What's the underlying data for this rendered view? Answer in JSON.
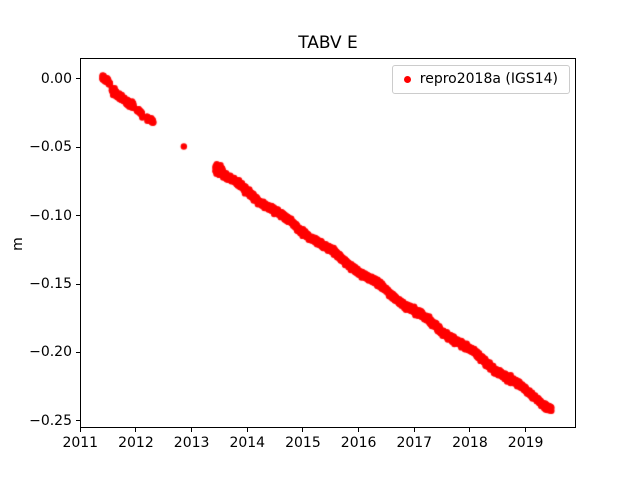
{
  "chart_data": {
    "type": "scatter",
    "title": "TABV E",
    "xlabel": "",
    "ylabel": "m",
    "xlim": [
      2010.995,
      2019.905
    ],
    "ylim_top": 0.0153,
    "ylim_bottom": -0.2553,
    "xticks": [
      2011,
      2012,
      2013,
      2014,
      2015,
      2016,
      2017,
      2018,
      2019
    ],
    "yticks": [
      0.0,
      -0.05,
      -0.1,
      -0.15,
      -0.2,
      -0.25
    ],
    "ytick_labels": [
      "0.00",
      "−0.05",
      "−0.10",
      "−0.15",
      "−0.20",
      "−0.25"
    ],
    "grid": false,
    "legend_position": "upper right",
    "series": [
      {
        "name": "repro2018a (IGS14)",
        "color": "#ff0000",
        "marker": "point",
        "marker_radius_px": 3.2,
        "trend_segments": [
          {
            "x0": 2011.38,
            "x1": 2011.52,
            "y0": 0.002,
            "y1": -0.003,
            "noise": 0.0018,
            "step": 0.003
          },
          {
            "x0": 2011.55,
            "x1": 2011.78,
            "y0": -0.008,
            "y1": -0.015,
            "noise": 0.002,
            "step": 0.004
          },
          {
            "x0": 2011.8,
            "x1": 2011.95,
            "y0": -0.016,
            "y1": -0.02,
            "noise": 0.002,
            "step": 0.004
          },
          {
            "x0": 2012.0,
            "x1": 2012.1,
            "y0": -0.022,
            "y1": -0.025,
            "noise": 0.0018,
            "step": 0.004
          },
          {
            "x0": 2012.18,
            "x1": 2012.3,
            "y0": -0.028,
            "y1": -0.031,
            "noise": 0.0018,
            "step": 0.004
          },
          {
            "x0": 2013.42,
            "x1": 2013.58,
            "y0": -0.065,
            "y1": -0.07,
            "noise": 0.003,
            "step": 0.002
          },
          {
            "x0": 2013.58,
            "x1": 2019.48,
            "y0": -0.07,
            "y1": -0.242,
            "noise": 0.0018,
            "step": 0.0027,
            "wiggle_amp": 0.0012,
            "wiggle_period": 0.85
          }
        ],
        "isolated_points": [
          [
            2012.85,
            -0.049
          ]
        ]
      }
    ]
  },
  "colors": {
    "marker": "#ff0000",
    "axes": "#000000",
    "legend_border": "#cccccc",
    "background": "#ffffff",
    "text": "#000000"
  }
}
